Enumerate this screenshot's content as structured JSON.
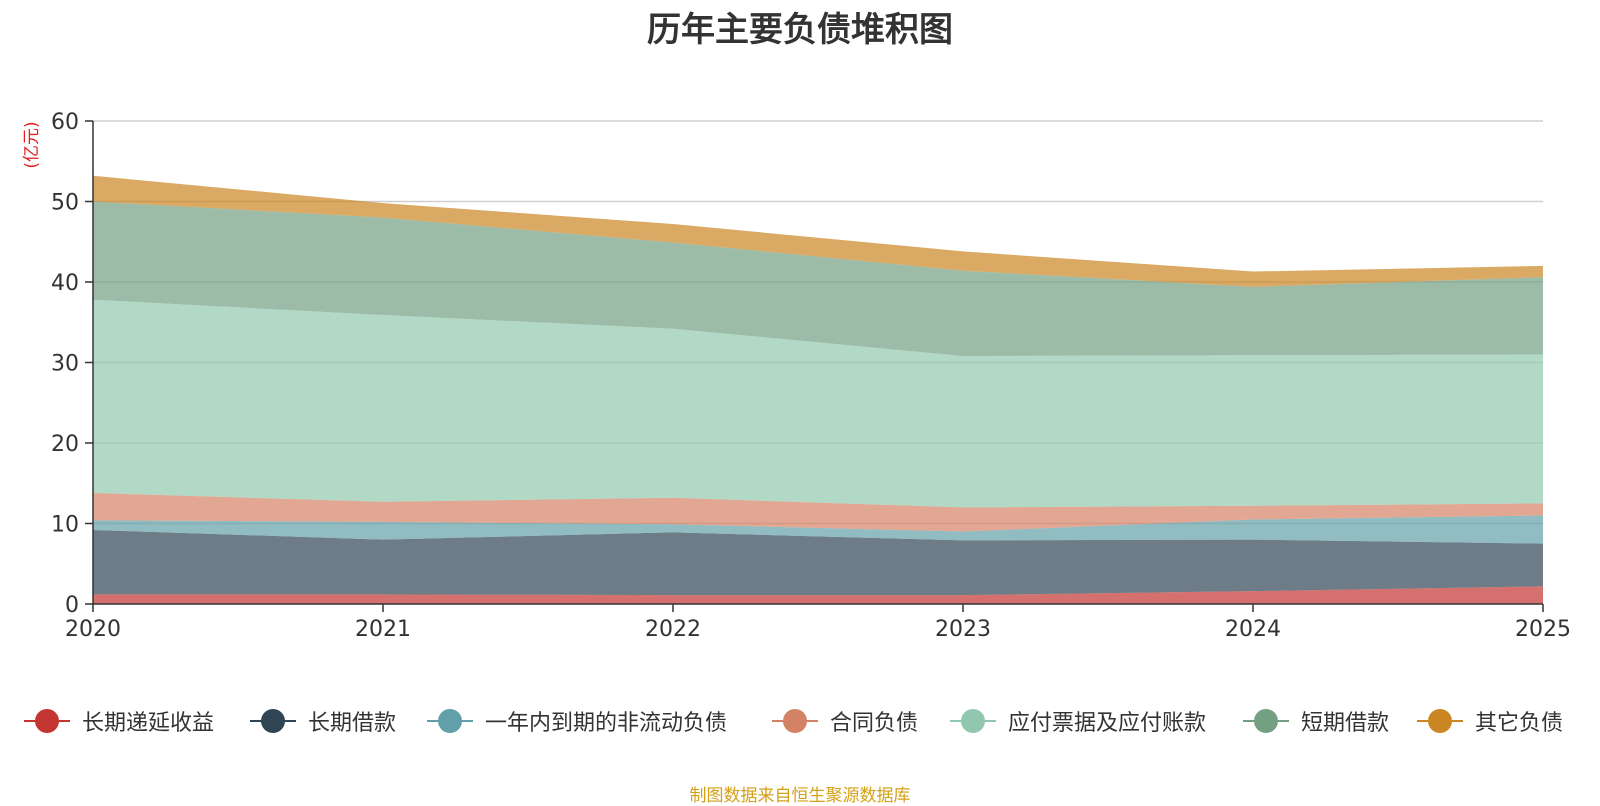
{
  "chart_data": {
    "type": "area",
    "stacked": true,
    "title": "历年主要负债堆积图",
    "y_unit_label": "(亿元)",
    "x": [
      "2020",
      "2021",
      "2022",
      "2023",
      "2024",
      "2025"
    ],
    "ylim": [
      0,
      60
    ],
    "yticks": [
      0,
      10,
      20,
      30,
      40,
      50,
      60
    ],
    "grid": true,
    "legend_position": "bottom",
    "series": [
      {
        "name": "长期递延收益",
        "color": "#c23531",
        "values": [
          1.2,
          1.2,
          1.1,
          1.1,
          1.6,
          2.2
        ]
      },
      {
        "name": "长期借款",
        "color": "#2f4554",
        "values": [
          8.0,
          6.8,
          7.8,
          6.8,
          6.4,
          5.3
        ]
      },
      {
        "name": "一年内到期的非流动负债",
        "color": "#61a0a8",
        "values": [
          1.2,
          2.2,
          1.0,
          1.1,
          2.5,
          3.5
        ]
      },
      {
        "name": "合同负债",
        "color": "#d48265",
        "values": [
          3.4,
          2.5,
          3.3,
          3.0,
          1.7,
          1.5
        ]
      },
      {
        "name": "应付票据及应付账款",
        "color": "#91c7ae",
        "values": [
          24.0,
          23.2,
          21.0,
          18.8,
          18.7,
          18.5
        ]
      },
      {
        "name": "短期借款",
        "color": "#749f83",
        "values": [
          12.2,
          12.1,
          10.7,
          10.6,
          8.5,
          9.6
        ]
      },
      {
        "name": "其它负债",
        "color": "#ca8622",
        "values": [
          3.2,
          1.8,
          2.3,
          2.4,
          1.9,
          1.4
        ]
      }
    ]
  },
  "footer": {
    "source_text": "制图数据来自恒生聚源数据库",
    "source_color": "#d4a017"
  }
}
